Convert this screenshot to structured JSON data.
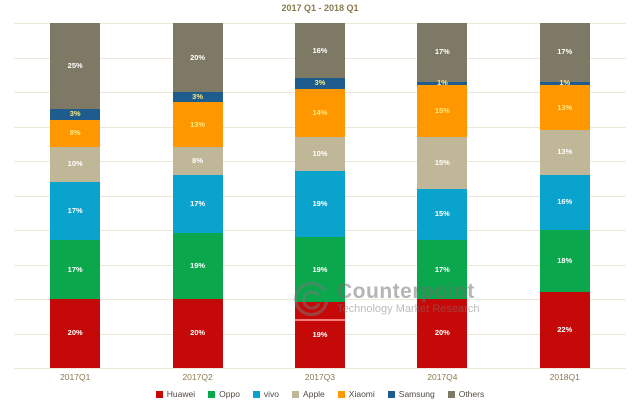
{
  "title": "2017 Q1 - 2018 Q1",
  "watermark": {
    "logo": "counterpoint-logo",
    "line1": "Counterpoint",
    "line2": "Technology Market Research"
  },
  "colors": {
    "background": "#FFFFFF",
    "title_text": "#877A4E",
    "axis_text": "#8B7A4D",
    "legend_text": "#4F4A40",
    "gridline": "#EDE8D9",
    "watermark_text": "#6E6E6E",
    "watermark_underline": "#FF9E9E"
  },
  "chart_data": {
    "type": "bar",
    "stacked": true,
    "unit": "percent",
    "title": "2017 Q1 - 2018 Q1",
    "categories": [
      "2017Q1",
      "2017Q2",
      "2017Q3",
      "2017Q4",
      "2018Q1"
    ],
    "series": [
      {
        "name": "Huawei",
        "color": "#C50808",
        "label_color": "#FFFFFF",
        "values": [
          20,
          20,
          19,
          20,
          22
        ]
      },
      {
        "name": "Oppo",
        "color": "#0AA74D",
        "label_color": "#FFFFFF",
        "values": [
          17,
          19,
          19,
          17,
          18
        ]
      },
      {
        "name": "vivo",
        "color": "#0AA3CE",
        "label_color": "#FFFFFF",
        "values": [
          17,
          17,
          19,
          15,
          16
        ]
      },
      {
        "name": "Apple",
        "color": "#C0B798",
        "label_color": "#FFFFFF",
        "values": [
          10,
          8,
          10,
          15,
          13
        ]
      },
      {
        "name": "Xiaomi",
        "color": "#FF9800",
        "label_color": "#FFE880",
        "values": [
          8,
          13,
          14,
          15,
          13
        ]
      },
      {
        "name": "Samsung",
        "color": "#1D5C8C",
        "label_color": "#FFE880",
        "values": [
          3,
          3,
          3,
          1,
          1
        ]
      },
      {
        "name": "Others",
        "color": "#7E7965",
        "label_color": "#FFFFFF",
        "values": [
          25,
          20,
          16,
          17,
          17
        ]
      }
    ],
    "stack_order": "bottom-to-top",
    "ylim": [
      0,
      100
    ],
    "grid": true,
    "gridline_interval": 10,
    "legend_position": "bottom",
    "data_labels": true
  }
}
